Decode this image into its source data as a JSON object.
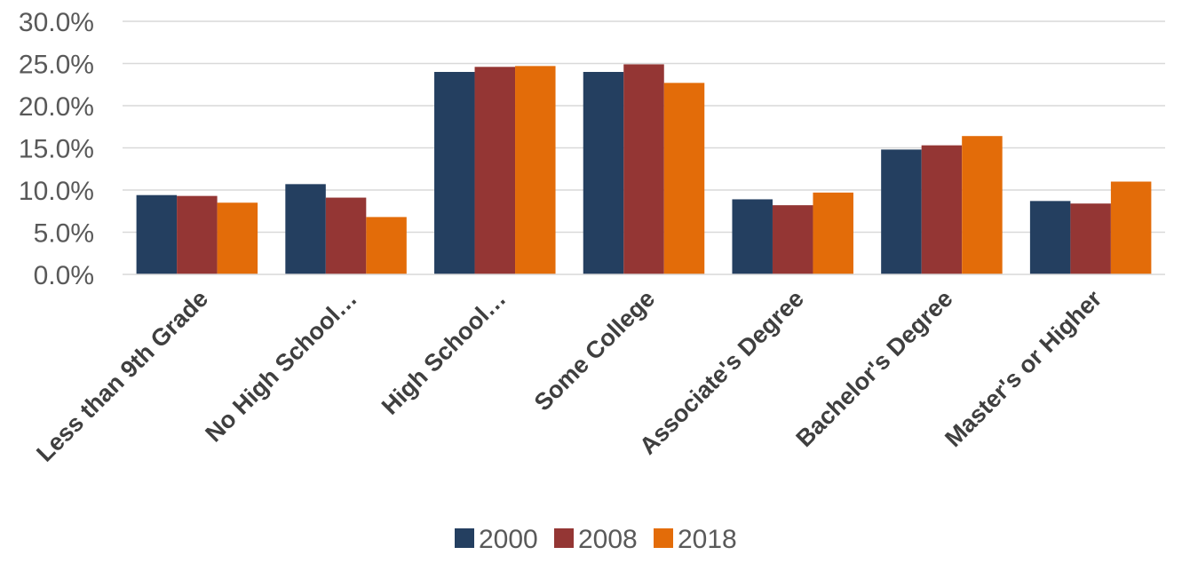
{
  "chart_data": {
    "type": "bar",
    "title": "",
    "xlabel": "",
    "ylabel": "",
    "categories": [
      "Less than 9th Grade",
      "No High School…",
      "High School…",
      "Some College",
      "Associate's Degree",
      "Bachelor's Degree",
      "Master's or Higher"
    ],
    "series": [
      {
        "name": "2000",
        "color": "#243f60",
        "values": [
          9.4,
          10.7,
          24.0,
          24.0,
          8.9,
          14.8,
          8.7
        ]
      },
      {
        "name": "2008",
        "color": "#943634",
        "values": [
          9.3,
          9.1,
          24.6,
          24.9,
          8.2,
          15.3,
          8.4
        ]
      },
      {
        "name": "2018",
        "color": "#e36c09",
        "values": [
          8.5,
          6.8,
          24.7,
          22.7,
          9.7,
          16.4,
          11.0
        ]
      }
    ],
    "ylim": [
      0,
      30
    ],
    "yticks": [
      "0.0%",
      "5.0%",
      "10.0%",
      "15.0%",
      "20.0%",
      "25.0%",
      "30.0%"
    ],
    "grid": true,
    "legend_position": "bottom"
  }
}
